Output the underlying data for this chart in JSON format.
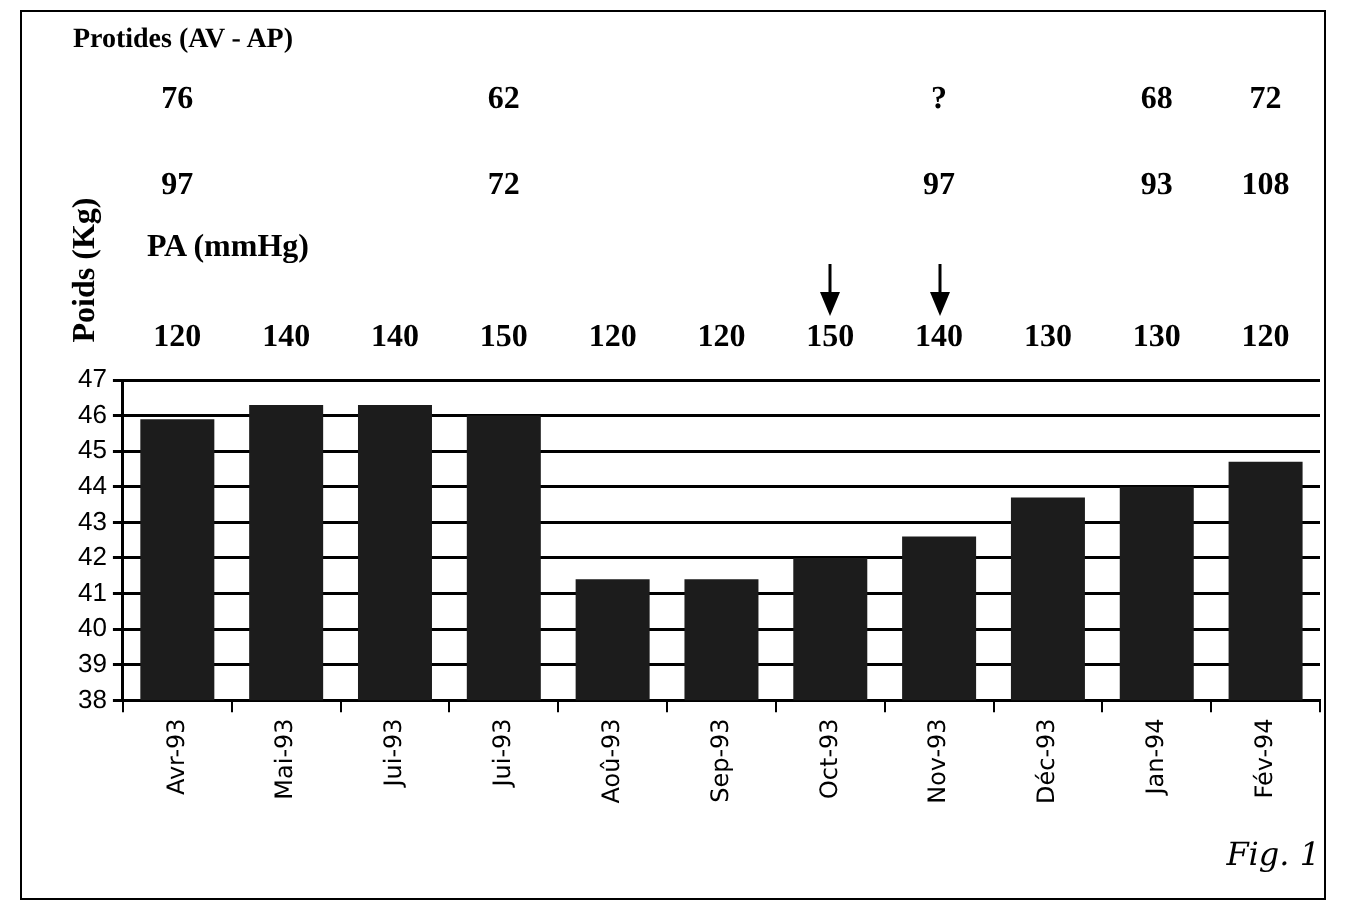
{
  "chart_data": {
    "type": "bar",
    "ylabel": "Poids (Kg)",
    "categories": [
      "Avr-93",
      "Mai-93",
      "Jui-93",
      "Jui-93",
      "Aoû-93",
      "Sep-93",
      "Oct-93",
      "Nov-93",
      "Déc-93",
      "Jan-94",
      "Fév-94"
    ],
    "values": [
      45.9,
      46.3,
      46.3,
      46.0,
      41.4,
      41.4,
      42.0,
      42.6,
      43.7,
      44.0,
      44.7
    ],
    "color": "#1c1c1c",
    "ylim": [
      38,
      47
    ],
    "yticks": [
      38,
      39,
      40,
      41,
      42,
      43,
      44,
      45,
      46,
      47
    ],
    "grid": "y",
    "legend": false,
    "annotations": [
      "Protides (AV - AP)",
      "76",
      "62",
      "?",
      "68",
      "72",
      "97",
      "72",
      "97",
      "93",
      "108",
      "PA (mmHg)",
      "120",
      "140",
      "140",
      "150",
      "120",
      "120",
      "150",
      "140",
      "130",
      "130",
      "120",
      "Fig. 1"
    ]
  }
}
